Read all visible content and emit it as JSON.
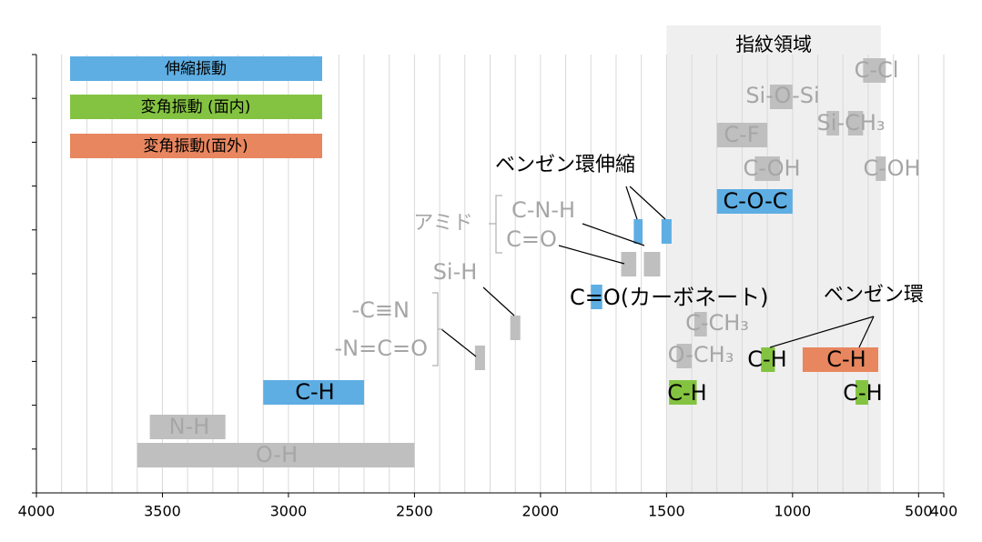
{
  "chart_data": {
    "type": "range-bar",
    "xlim": [
      4000,
      400
    ],
    "xticks": [
      4000,
      3500,
      3000,
      2500,
      2000,
      1500,
      1000,
      500,
      400
    ],
    "xgrid": [
      3900,
      3800,
      3700,
      3600,
      3500,
      3400,
      3300,
      3200,
      3100,
      3000,
      2900,
      2800,
      2700,
      2600,
      2500,
      2400,
      2300,
      2200,
      2100,
      2000,
      1900,
      1800,
      1700,
      1600,
      1500,
      1400,
      1300,
      1200,
      1100,
      1000,
      900,
      800,
      700,
      600,
      500,
      400
    ],
    "region": {
      "label": "指紋領域",
      "range": [
        1500,
        650
      ]
    },
    "legend": [
      {
        "name": "伸縮振動",
        "color": "#5eaee3"
      },
      {
        "name": "変角振動 (面内)",
        "color": "#84c341"
      },
      {
        "name": "変角振動(面外)",
        "color": "#e8865f"
      }
    ],
    "bands": [
      {
        "labels": [
          "C-Cl"
        ],
        "ranges": [
          [
            720,
            630
          ]
        ],
        "color": "#bfbfbf"
      },
      {
        "labels": [
          "Si-O-Si"
        ],
        "ranges": [
          [
            1090,
            1000
          ]
        ],
        "color": "#bfbfbf"
      },
      {
        "labels": [
          "Si-CH₃"
        ],
        "ranges": [
          [
            865,
            815
          ],
          [
            780,
            720
          ]
        ],
        "color": "#bfbfbf"
      },
      {
        "labels": [
          "C-F"
        ],
        "ranges": [
          [
            1300,
            1100
          ]
        ],
        "color": "#bfbfbf"
      },
      {
        "labels": [
          "C-OH"
        ],
        "ranges": [
          [
            1150,
            1050
          ]
        ],
        "color": "#bfbfbf"
      },
      {
        "labels": [
          "C-OH"
        ],
        "ranges": [
          [
            670,
            630
          ]
        ],
        "color": "#bfbfbf"
      },
      {
        "labels": [
          "C-O-C"
        ],
        "ranges": [
          [
            1300,
            1000
          ]
        ],
        "color": "#5eaee3"
      },
      {
        "labels": [
          "ベンゼン環伸縮"
        ],
        "ranges": [
          [
            1630,
            1595
          ],
          [
            1520,
            1480
          ]
        ],
        "color": "#5eaee3"
      },
      {
        "labels": [
          "C-N-H"
        ],
        "ranges": [
          [
            1590,
            1525
          ]
        ],
        "color": "#bfbfbf"
      },
      {
        "labels": [
          "C=O"
        ],
        "ranges": [
          [
            1680,
            1620
          ]
        ],
        "color": "#bfbfbf"
      },
      {
        "labels": [
          "Si-H"
        ],
        "ranges": [
          [
            2120,
            2080
          ]
        ],
        "color": "#bfbfbf"
      },
      {
        "labels": [
          "-C≡N",
          "-N=C=O"
        ],
        "ranges": [
          [
            2260,
            2220
          ]
        ],
        "color": "#bfbfbf"
      },
      {
        "labels": [
          "C=O(カーボネート)"
        ],
        "ranges": [
          [
            1800,
            1755
          ]
        ],
        "color": "#5eaee3"
      },
      {
        "labels": [
          "C-CH₃"
        ],
        "ranges": [
          [
            1390,
            1340
          ]
        ],
        "color": "#bfbfbf"
      },
      {
        "labels": [
          "O-CH₃"
        ],
        "ranges": [
          [
            1460,
            1400
          ]
        ],
        "color": "#bfbfbf"
      },
      {
        "labels": [
          "C-H"
        ],
        "ranges": [
          [
            1125,
            1070
          ]
        ],
        "color": "#84c341"
      },
      {
        "labels": [
          "C-H"
        ],
        "ranges": [
          [
            960,
            660
          ]
        ],
        "color": "#e8865f"
      },
      {
        "labels": [
          "C-H"
        ],
        "ranges": [
          [
            3100,
            2700
          ]
        ],
        "color": "#5eaee3"
      },
      {
        "labels": [
          "C-H"
        ],
        "ranges": [
          [
            1490,
            1380
          ]
        ],
        "color": "#84c341"
      },
      {
        "labels": [
          "C-H"
        ],
        "ranges": [
          [
            750,
            700
          ]
        ],
        "color": "#84c341"
      },
      {
        "labels": [
          "N-H"
        ],
        "ranges": [
          [
            3550,
            3250
          ]
        ],
        "color": "#bfbfbf"
      },
      {
        "labels": [
          "O-H"
        ],
        "ranges": [
          [
            3600,
            2500
          ]
        ],
        "color": "#bfbfbf"
      }
    ],
    "annotations": [
      "アミド",
      "ベンゼン環"
    ]
  }
}
